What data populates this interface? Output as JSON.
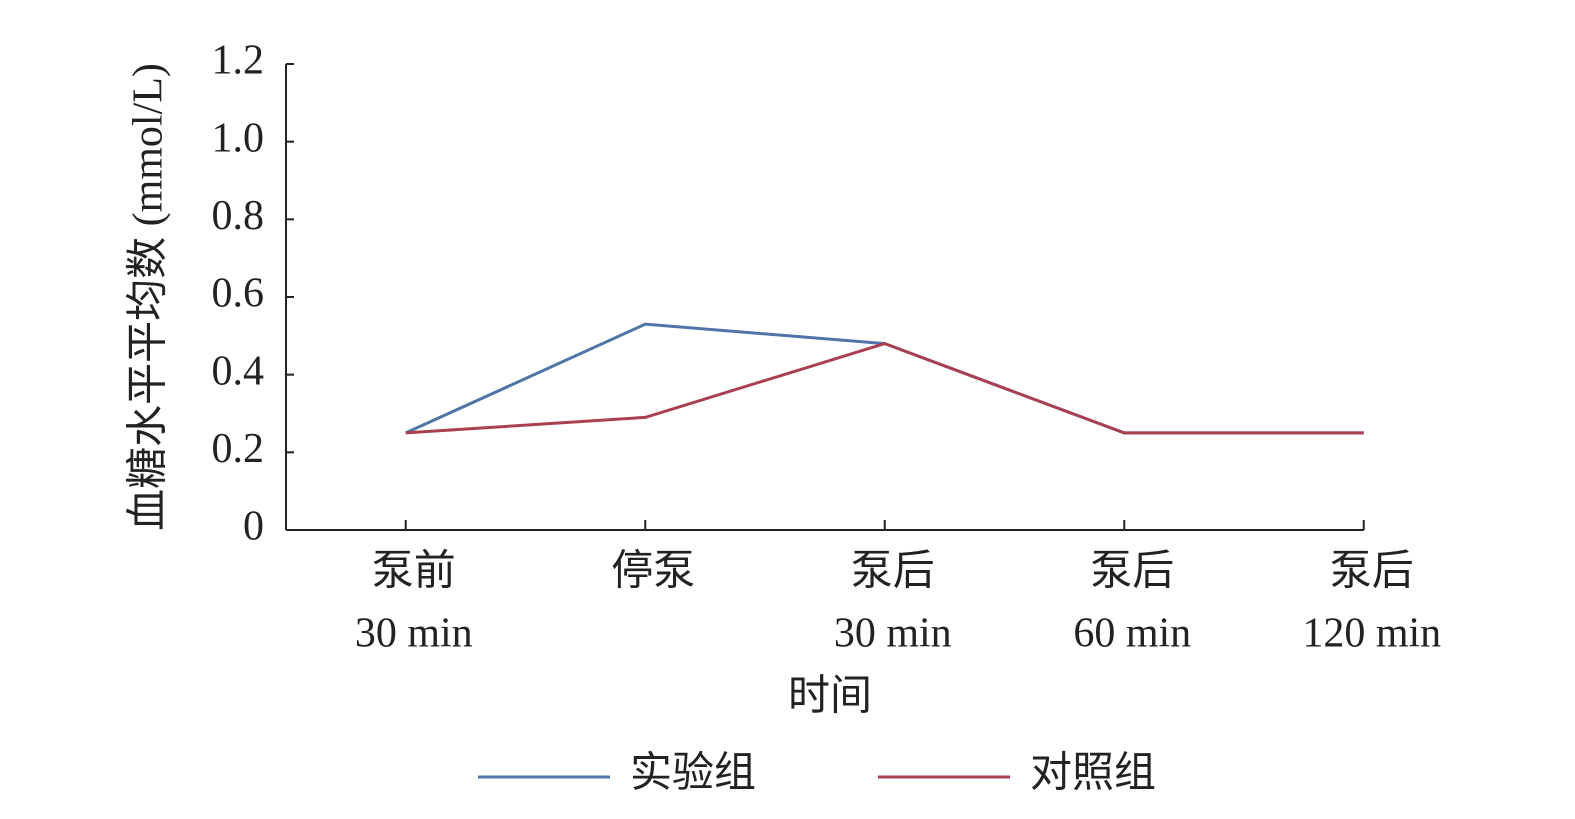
{
  "chart_data": {
    "type": "line",
    "x_label": "时间",
    "y_label": "血糖水平平均数 (mmol/L)",
    "categories": [
      [
        "泵前",
        "30 min"
      ],
      [
        "停泵"
      ],
      [
        "泵后",
        "30 min"
      ],
      [
        "泵后",
        "60 min"
      ],
      [
        "泵后",
        "120 min"
      ]
    ],
    "series": [
      {
        "name": "实验组",
        "color": "#4f74a8",
        "values": [
          0.25,
          0.53,
          0.48,
          0.25,
          0.25
        ]
      },
      {
        "name": "对照组",
        "color": "#a8404f",
        "values": [
          0.25,
          0.29,
          0.48,
          0.25,
          0.25
        ]
      }
    ],
    "ylim": [
      0,
      1.2
    ],
    "yticks": [
      0,
      0.2,
      0.4,
      0.6,
      0.8,
      {
        "value": 1,
        "label": "1.0"
      },
      1.2
    ],
    "grid": false,
    "legend": "bottom"
  }
}
